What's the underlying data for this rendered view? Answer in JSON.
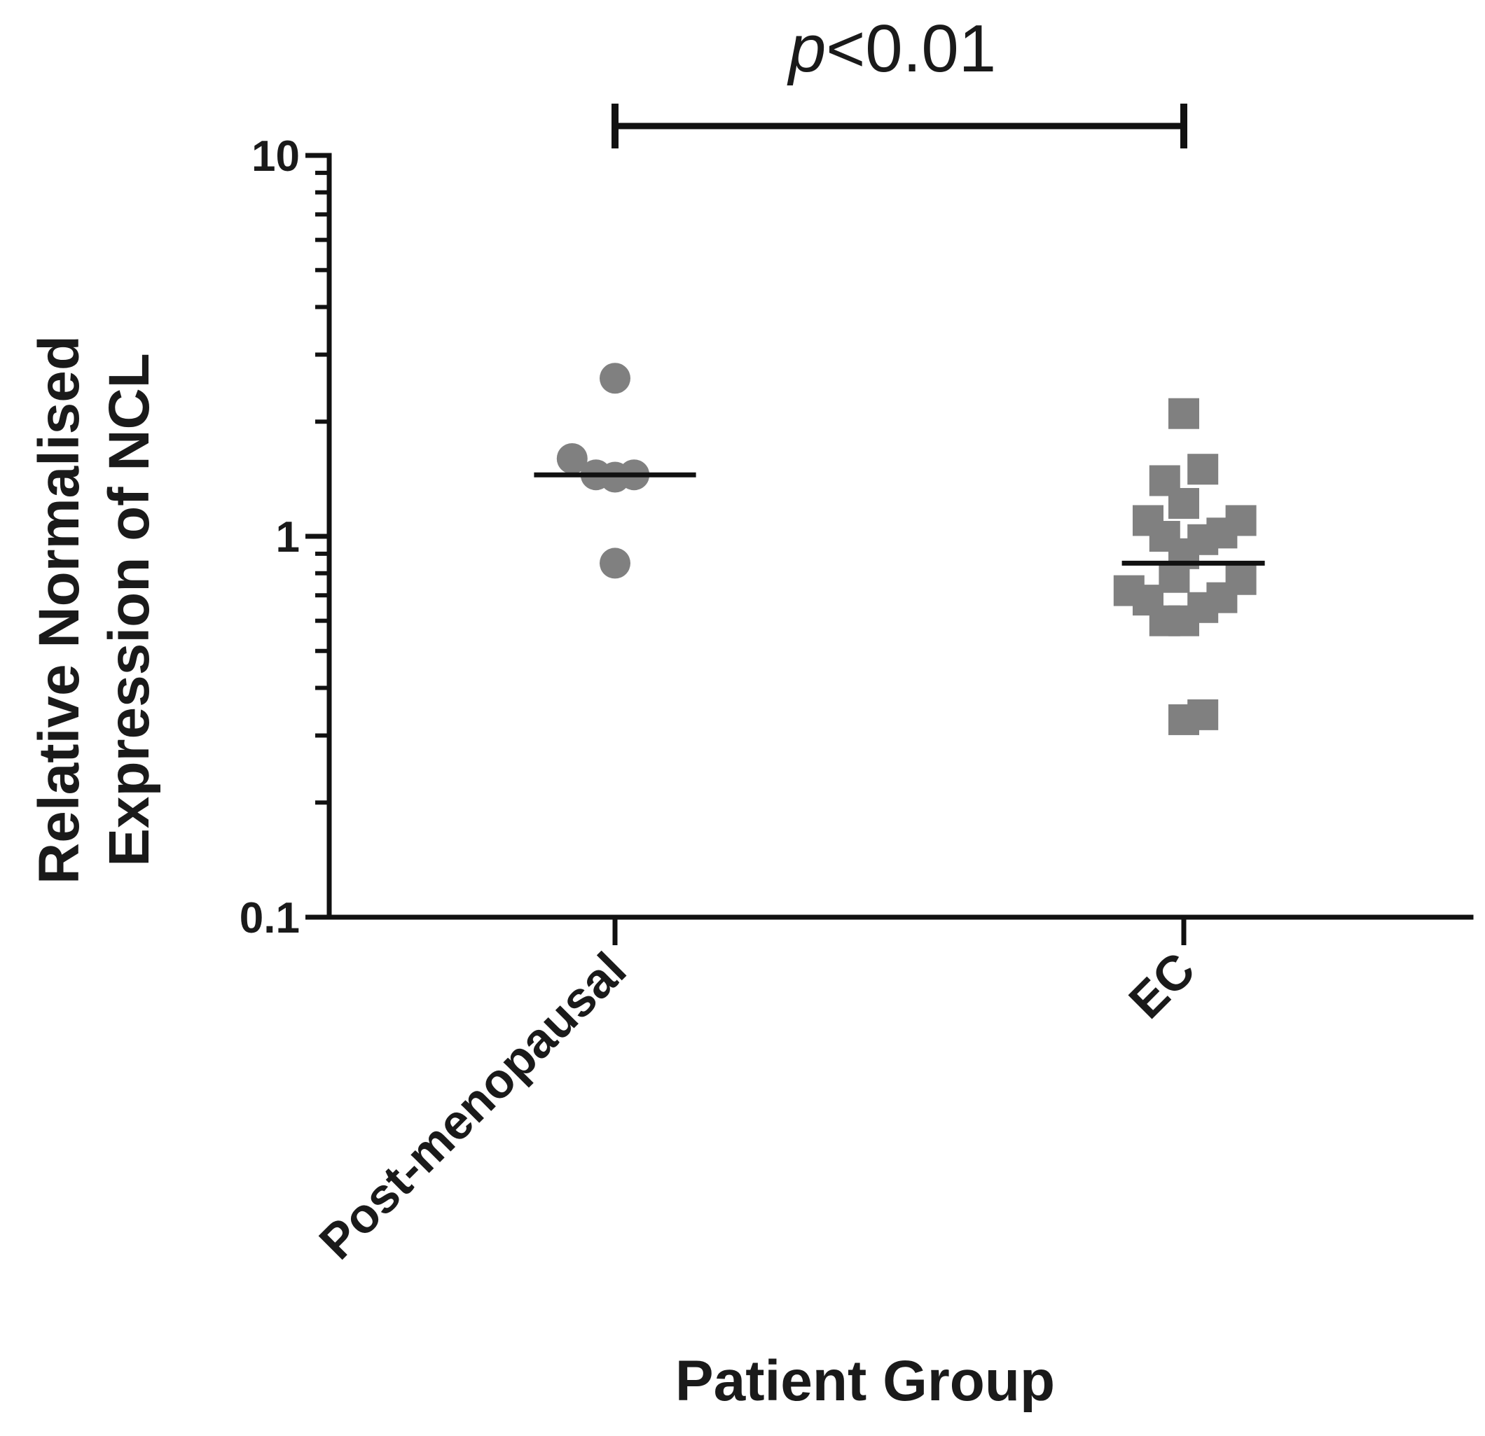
{
  "chart_data": {
    "type": "scatter",
    "title": "",
    "xlabel": "Patient Group",
    "ylabel_lines": [
      "Relative Normalised",
      "Expression of NCL"
    ],
    "yscale": "log",
    "ylim": [
      0.1,
      10
    ],
    "yticks": [
      {
        "value": 0.1,
        "label": "0.1"
      },
      {
        "value": 1,
        "label": "1"
      },
      {
        "value": 10,
        "label": "10"
      }
    ],
    "categories": [
      "Post-menopausal",
      "EC"
    ],
    "series": [
      {
        "name": "Post-menopausal",
        "marker": "circle",
        "color": "#808080",
        "points": [
          {
            "offset": 0.0,
            "value": 2.6
          },
          {
            "offset": -0.18,
            "value": 1.6
          },
          {
            "offset": -0.08,
            "value": 1.45
          },
          {
            "offset": 0.0,
            "value": 1.43
          },
          {
            "offset": 0.08,
            "value": 1.45
          },
          {
            "offset": 0.0,
            "value": 0.85
          }
        ],
        "median": 1.45,
        "median_span": [
          -0.34,
          0.34
        ]
      },
      {
        "name": "EC",
        "marker": "square",
        "color": "#808080",
        "points": [
          {
            "offset": 0.0,
            "value": 2.1
          },
          {
            "offset": -0.08,
            "value": 1.4
          },
          {
            "offset": 0.08,
            "value": 1.5
          },
          {
            "offset": 0.0,
            "value": 1.22
          },
          {
            "offset": -0.15,
            "value": 1.1
          },
          {
            "offset": 0.24,
            "value": 1.1
          },
          {
            "offset": -0.08,
            "value": 1.0
          },
          {
            "offset": 0.08,
            "value": 0.98
          },
          {
            "offset": 0.16,
            "value": 1.02
          },
          {
            "offset": 0.0,
            "value": 0.9
          },
          {
            "offset": -0.04,
            "value": 0.78
          },
          {
            "offset": -0.23,
            "value": 0.72
          },
          {
            "offset": -0.15,
            "value": 0.68
          },
          {
            "offset": 0.24,
            "value": 0.77
          },
          {
            "offset": 0.16,
            "value": 0.69
          },
          {
            "offset": 0.08,
            "value": 0.65
          },
          {
            "offset": -0.08,
            "value": 0.6
          },
          {
            "offset": 0.0,
            "value": 0.6
          },
          {
            "offset": 0.0,
            "value": 0.33
          },
          {
            "offset": 0.08,
            "value": 0.34
          }
        ],
        "median": 0.85,
        "median_span": [
          -0.26,
          0.34
        ]
      }
    ],
    "annotations": [
      {
        "type": "significance_bracket",
        "from": "Post-menopausal",
        "to": "EC",
        "text_italic": "p",
        "text_rest": "<0.01"
      }
    ]
  }
}
